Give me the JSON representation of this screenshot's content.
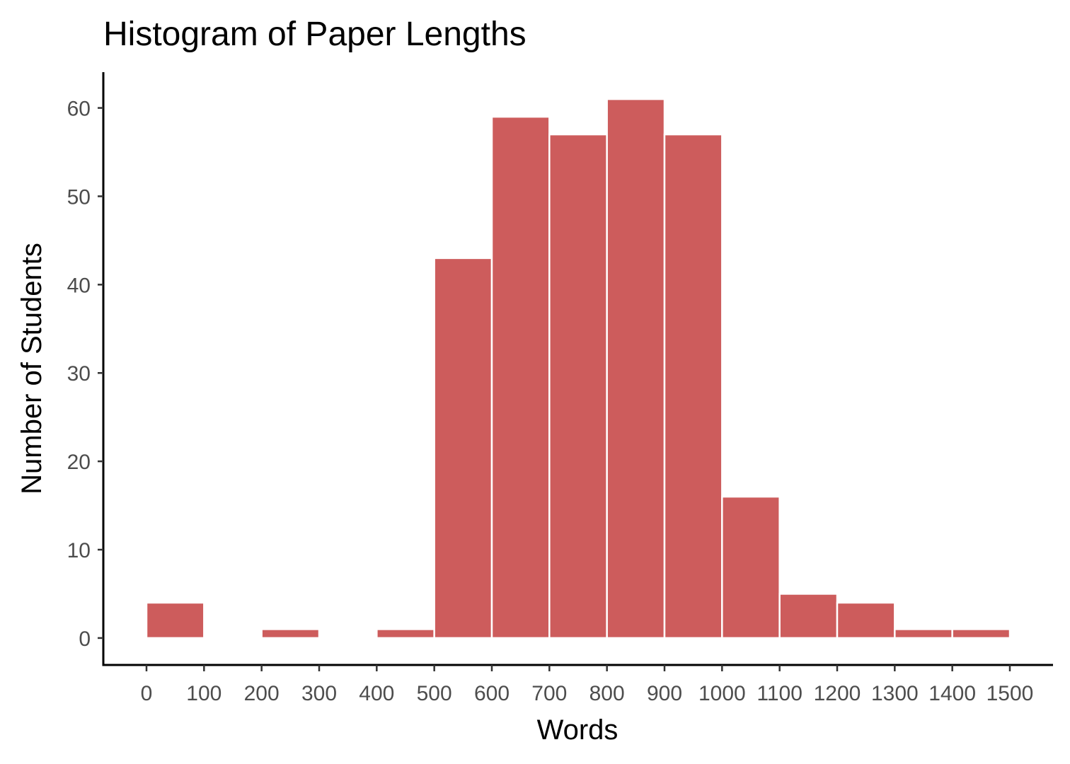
{
  "chart_data": {
    "type": "bar",
    "title": "Histogram of Paper Lengths",
    "xlabel": "Words",
    "ylabel": "Number of Students",
    "bin_edges": [
      0,
      100,
      200,
      300,
      400,
      500,
      600,
      700,
      800,
      900,
      1000,
      1100,
      1200,
      1300,
      1400,
      1500
    ],
    "values": [
      4,
      0,
      1,
      0,
      1,
      43,
      59,
      57,
      61,
      57,
      16,
      5,
      4,
      1,
      1
    ],
    "x_ticks": [
      0,
      100,
      200,
      300,
      400,
      500,
      600,
      700,
      800,
      900,
      1000,
      1100,
      1200,
      1300,
      1400,
      1500
    ],
    "x_tick_labels": [
      "0",
      "100",
      "200",
      "300",
      "400",
      "500",
      "600",
      "700",
      "800",
      "900",
      "1000",
      "1100",
      "1200",
      "1300",
      "1400",
      "1500"
    ],
    "y_ticks": [
      0,
      10,
      20,
      30,
      40,
      50,
      60
    ],
    "y_tick_labels": [
      "0",
      "10",
      "20",
      "30",
      "40",
      "50",
      "60"
    ],
    "xlim": [
      -75,
      1575
    ],
    "ylim": [
      -3.05,
      64.05
    ],
    "grid": false,
    "colors": {
      "bar_fill": "#cd5c5c",
      "bar_edge": "#ffffff",
      "axis": "#000000",
      "tick_text": "#4d4d4d"
    }
  }
}
